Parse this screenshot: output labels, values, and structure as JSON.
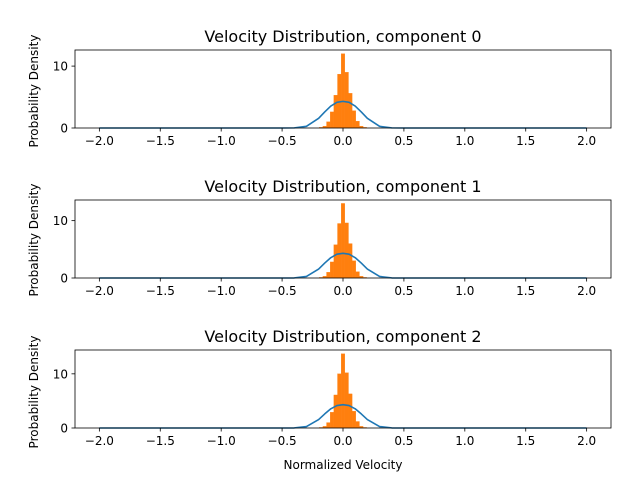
{
  "colors": {
    "curve": "#1f77b4",
    "hist": "#ff7f0e",
    "axes": "#000000"
  },
  "chart_data": [
    {
      "type": "line",
      "title": "Velocity Distribution, component 0",
      "xlabel": "",
      "ylabel": "Probability Density",
      "xlim": [
        -2.2,
        2.2
      ],
      "ylim": [
        0,
        12.6
      ],
      "xticks": [
        -2.0,
        -1.5,
        -1.0,
        -0.5,
        0.0,
        0.5,
        1.0,
        1.5,
        2.0
      ],
      "xtick_labels": [
        "−2.0",
        "−1.5",
        "−1.0",
        "−0.5",
        "0.0",
        "0.5",
        "1.0",
        "1.5",
        "2.0"
      ],
      "yticks": [
        0,
        10
      ],
      "ytick_labels": [
        "0",
        "10"
      ],
      "series": [
        {
          "type": "line",
          "x": [
            -2.0,
            -0.5,
            -0.4,
            -0.3,
            -0.2,
            -0.15,
            -0.1,
            -0.05,
            0.0,
            0.05,
            0.1,
            0.15,
            0.2,
            0.3,
            0.4,
            0.5,
            2.0
          ],
          "y": [
            0,
            0.0,
            0.02,
            0.27,
            1.56,
            2.6,
            3.55,
            4.15,
            4.3,
            4.15,
            3.55,
            2.6,
            1.56,
            0.27,
            0.02,
            0.0,
            0
          ]
        },
        {
          "type": "histogram",
          "x": [
            -0.18,
            -0.15,
            -0.12,
            -0.09,
            -0.06,
            -0.03,
            0.0,
            0.03,
            0.06,
            0.09,
            0.12,
            0.15,
            0.18
          ],
          "y": [
            0.1,
            0.3,
            1.0,
            2.6,
            5.3,
            8.7,
            12.0,
            9.0,
            5.6,
            2.8,
            1.1,
            0.3,
            0.1
          ]
        }
      ]
    },
    {
      "type": "line",
      "title": "Velocity Distribution, component 1",
      "xlabel": "",
      "ylabel": "Probability Density",
      "xlim": [
        -2.2,
        2.2
      ],
      "ylim": [
        0,
        13.6
      ],
      "xticks": [
        -2.0,
        -1.5,
        -1.0,
        -0.5,
        0.0,
        0.5,
        1.0,
        1.5,
        2.0
      ],
      "xtick_labels": [
        "−2.0",
        "−1.5",
        "−1.0",
        "−0.5",
        "0.0",
        "0.5",
        "1.0",
        "1.5",
        "2.0"
      ],
      "yticks": [
        0,
        10
      ],
      "ytick_labels": [
        "0",
        "10"
      ],
      "series": [
        {
          "type": "line",
          "x": [
            -2.0,
            -0.5,
            -0.4,
            -0.3,
            -0.2,
            -0.15,
            -0.1,
            -0.05,
            0.0,
            0.05,
            0.1,
            0.15,
            0.2,
            0.3,
            0.4,
            0.5,
            2.0
          ],
          "y": [
            0,
            0.0,
            0.02,
            0.27,
            1.56,
            2.6,
            3.55,
            4.15,
            4.3,
            4.15,
            3.55,
            2.6,
            1.56,
            0.27,
            0.02,
            0.0,
            0
          ]
        },
        {
          "type": "histogram",
          "x": [
            -0.18,
            -0.15,
            -0.12,
            -0.09,
            -0.06,
            -0.03,
            0.0,
            0.03,
            0.06,
            0.09,
            0.12,
            0.15,
            0.18
          ],
          "y": [
            0.1,
            0.3,
            1.0,
            2.8,
            5.8,
            9.5,
            13.0,
            9.6,
            6.0,
            3.0,
            1.1,
            0.3,
            0.1
          ]
        }
      ]
    },
    {
      "type": "line",
      "title": "Velocity Distribution, component 2",
      "xlabel": "Normalized Velocity",
      "ylabel": "Probability Density",
      "xlim": [
        -2.2,
        2.2
      ],
      "ylim": [
        0,
        14.4
      ],
      "xticks": [
        -2.0,
        -1.5,
        -1.0,
        -0.5,
        0.0,
        0.5,
        1.0,
        1.5,
        2.0
      ],
      "xtick_labels": [
        "−2.0",
        "−1.5",
        "−1.0",
        "−0.5",
        "0.0",
        "0.5",
        "1.0",
        "1.5",
        "2.0"
      ],
      "yticks": [
        0,
        10
      ],
      "ytick_labels": [
        "0",
        "10"
      ],
      "series": [
        {
          "type": "line",
          "x": [
            -2.0,
            -0.5,
            -0.4,
            -0.3,
            -0.2,
            -0.15,
            -0.1,
            -0.05,
            0.0,
            0.05,
            0.1,
            0.15,
            0.2,
            0.3,
            0.4,
            0.5,
            2.0
          ],
          "y": [
            0,
            0.0,
            0.02,
            0.27,
            1.56,
            2.6,
            3.55,
            4.15,
            4.3,
            4.15,
            3.55,
            2.6,
            1.56,
            0.27,
            0.02,
            0.0,
            0
          ]
        },
        {
          "type": "histogram",
          "x": [
            -0.18,
            -0.15,
            -0.12,
            -0.09,
            -0.06,
            -0.03,
            0.0,
            0.03,
            0.06,
            0.09,
            0.12,
            0.15,
            0.18
          ],
          "y": [
            0.1,
            0.3,
            1.0,
            2.9,
            6.1,
            10.0,
            13.7,
            10.2,
            6.3,
            3.1,
            1.2,
            0.3,
            0.1
          ]
        }
      ]
    }
  ]
}
